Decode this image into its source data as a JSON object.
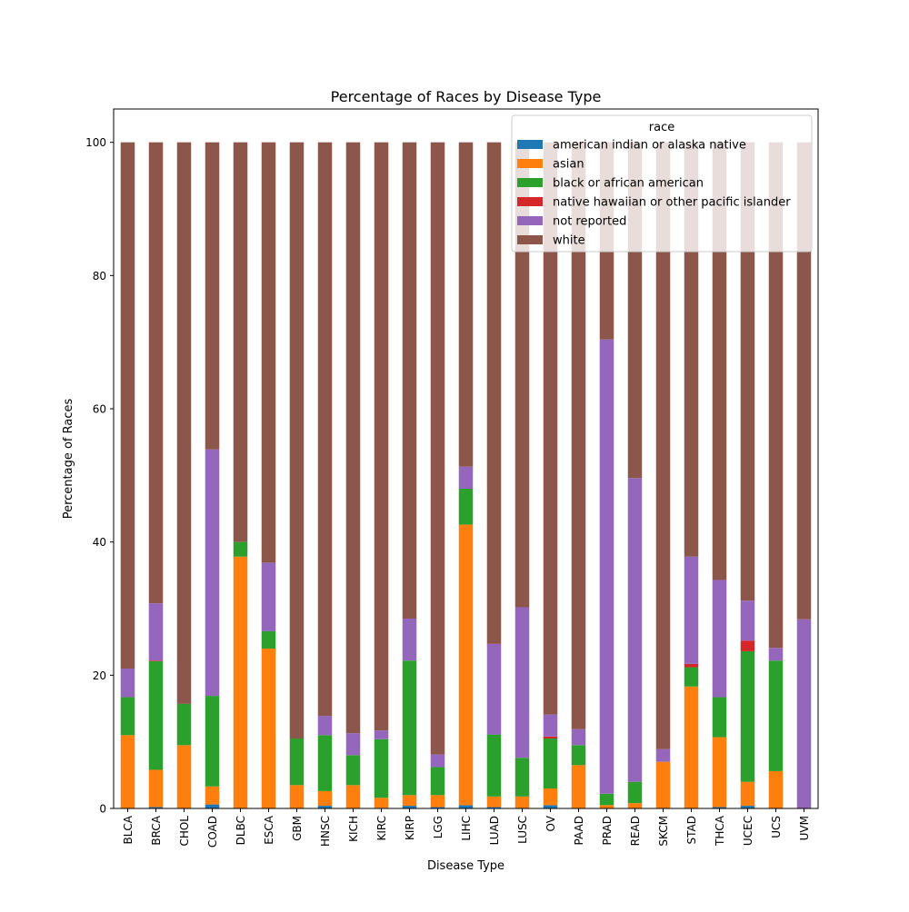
{
  "chart_data": {
    "type": "bar",
    "stacked": true,
    "title": "Percentage of Races by Disease Type",
    "xlabel": "Disease Type",
    "ylabel": "Percentage of Races",
    "ylim": [
      0,
      105
    ],
    "yticks": [
      0,
      20,
      40,
      60,
      80,
      100
    ],
    "grid": false,
    "legend_title": "race",
    "legend_position": "top-right",
    "categories": [
      "BLCA",
      "BRCA",
      "CHOL",
      "COAD",
      "DLBC",
      "ESCA",
      "GBM",
      "HNSC",
      "KICH",
      "KIRC",
      "KIRP",
      "LGG",
      "LIHC",
      "LUAD",
      "LUSC",
      "OV",
      "PAAD",
      "PRAD",
      "READ",
      "SKCM",
      "STAD",
      "THCA",
      "UCEC",
      "UCS",
      "UVM"
    ],
    "series": [
      {
        "name": "american indian or alaska native",
        "color": "#1f77b4",
        "values": [
          0,
          0.2,
          0,
          0.6,
          0,
          0,
          0,
          0.4,
          0,
          0.1,
          0.4,
          0.2,
          0.5,
          0.2,
          0,
          0.5,
          0,
          0,
          0,
          0,
          0,
          0.2,
          0.4,
          0,
          0
        ]
      },
      {
        "name": "asian",
        "color": "#ff7f0e",
        "values": [
          11.0,
          5.6,
          9.5,
          2.7,
          37.8,
          24.0,
          3.5,
          2.2,
          3.5,
          1.5,
          1.6,
          1.8,
          42.1,
          1.6,
          1.8,
          2.5,
          6.5,
          0.5,
          0.8,
          7.0,
          18.3,
          10.5,
          3.6,
          5.6,
          0
        ]
      },
      {
        "name": "black or african american",
        "color": "#2ca02c",
        "values": [
          5.7,
          16.3,
          6.2,
          13.6,
          2.2,
          2.6,
          7.0,
          8.4,
          4.5,
          8.8,
          20.2,
          4.2,
          5.4,
          9.3,
          5.8,
          7.5,
          3.0,
          1.7,
          3.2,
          0,
          2.9,
          6.0,
          19.6,
          16.6,
          0
        ]
      },
      {
        "name": "native hawaiian or other pacific islander",
        "color": "#d62728",
        "values": [
          0,
          0.1,
          0,
          0,
          0,
          0,
          0,
          0,
          0,
          0,
          0,
          0,
          0,
          0,
          0,
          0.3,
          0,
          0,
          0,
          0,
          0.5,
          0,
          1.6,
          0,
          0
        ]
      },
      {
        "name": "not reported",
        "color": "#9467bd",
        "values": [
          4.3,
          8.6,
          0,
          37.0,
          0,
          10.3,
          0,
          2.9,
          3.3,
          1.3,
          6.3,
          1.9,
          3.3,
          13.6,
          22.6,
          3.3,
          2.4,
          68.2,
          45.6,
          1.9,
          16.1,
          17.6,
          6.0,
          1.9,
          28.4
        ]
      },
      {
        "name": "white",
        "color": "#8c564b",
        "values": [
          79.0,
          69.2,
          84.3,
          46.1,
          60.0,
          63.1,
          89.5,
          86.1,
          88.7,
          88.3,
          71.5,
          91.9,
          48.7,
          75.3,
          69.8,
          85.9,
          88.1,
          29.6,
          50.4,
          91.1,
          62.2,
          65.7,
          68.8,
          75.9,
          71.6
        ]
      }
    ]
  }
}
